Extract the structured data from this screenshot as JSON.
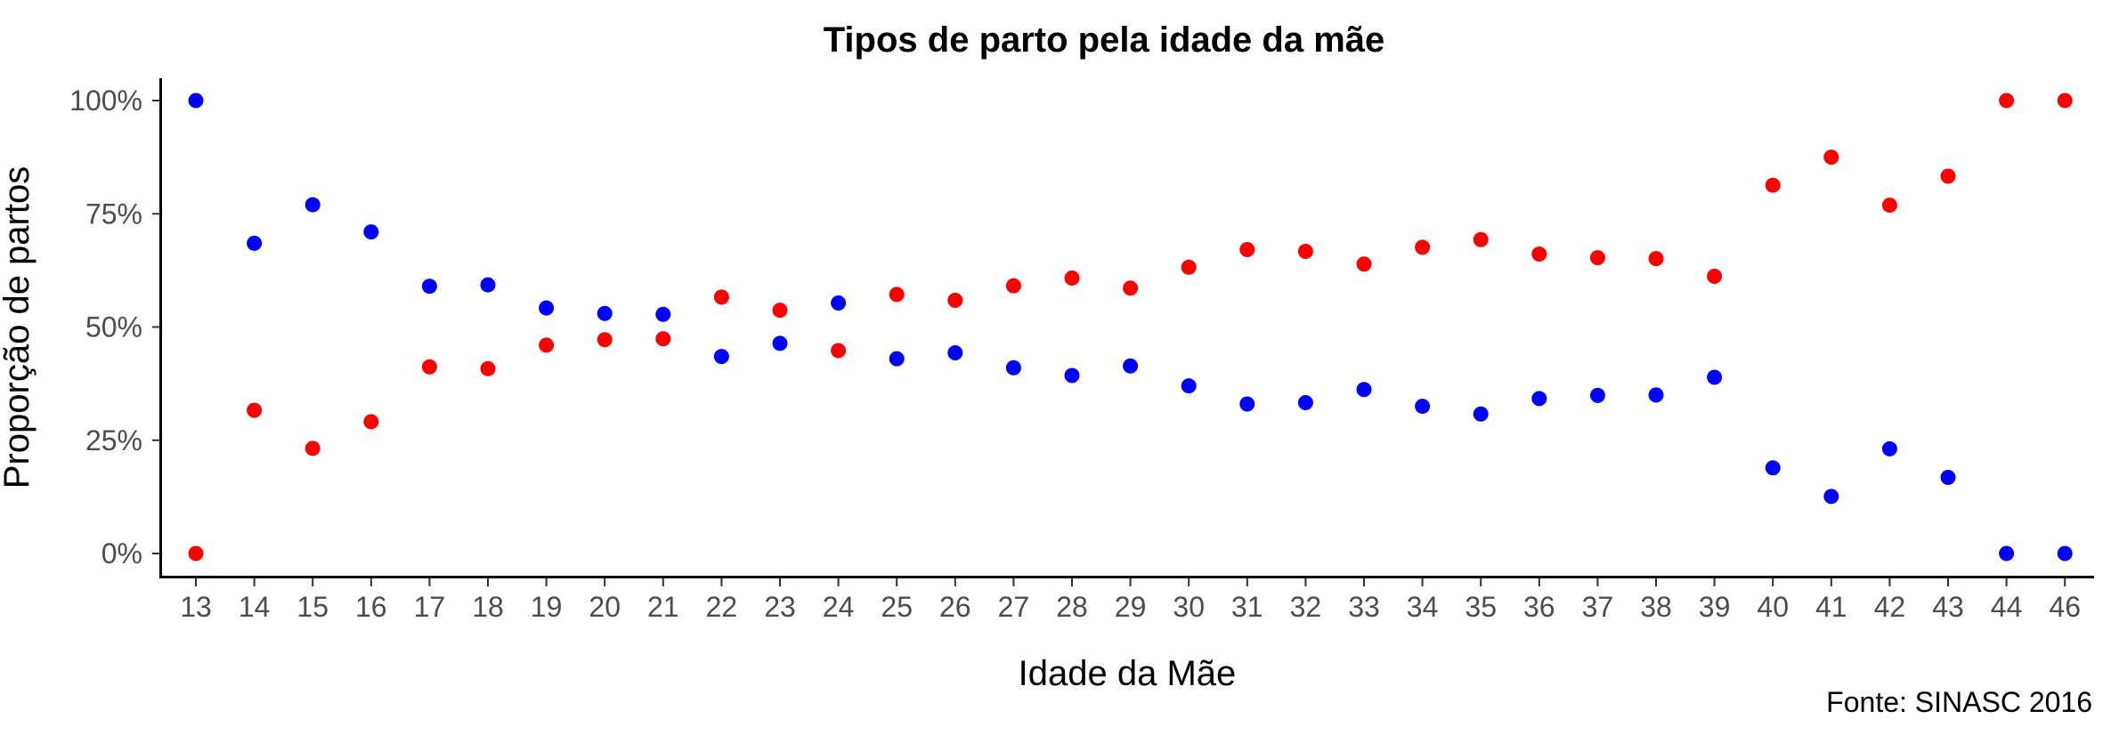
{
  "chart_data": {
    "type": "scatter",
    "title": "Tipos de parto pela idade da mãe",
    "xlabel": "Idade da Mãe",
    "ylabel": "Proporção de partos",
    "caption": "Fonte: SINASC 2016",
    "categories": [
      "13",
      "14",
      "15",
      "16",
      "17",
      "18",
      "19",
      "20",
      "21",
      "22",
      "23",
      "24",
      "25",
      "26",
      "27",
      "28",
      "29",
      "30",
      "31",
      "32",
      "33",
      "34",
      "35",
      "36",
      "37",
      "38",
      "39",
      "40",
      "41",
      "42",
      "43",
      "44",
      "46"
    ],
    "y_ticks": [
      0,
      25,
      50,
      75,
      100
    ],
    "y_tick_labels": [
      "0%",
      "25%",
      "50%",
      "75%",
      "100%"
    ],
    "ylim": [
      -5,
      105
    ],
    "grid": false,
    "legend": "none",
    "series": [
      {
        "color": "#0000ff",
        "values": [
          100,
          68.5,
          77,
          71,
          59,
          59.3,
          54.2,
          53,
          52.8,
          43.5,
          46.4,
          55.3,
          43,
          44.3,
          41,
          39.3,
          41.4,
          37,
          33,
          33.3,
          36.2,
          32.5,
          30.8,
          34.2,
          34.9,
          35,
          38.9,
          18.9,
          12.6,
          23.1,
          16.8,
          0,
          0
        ]
      },
      {
        "color": "#ff0000",
        "values": [
          0,
          31.6,
          23.2,
          29.1,
          41.2,
          40.8,
          46,
          47.2,
          47.4,
          56.6,
          53.7,
          44.8,
          57.2,
          55.9,
          59.1,
          60.8,
          58.6,
          63.2,
          67.1,
          66.7,
          63.9,
          67.6,
          69.3,
          66.1,
          65.3,
          65.1,
          61.2,
          81.3,
          87.5,
          76.9,
          83.3,
          100,
          100
        ]
      }
    ]
  }
}
